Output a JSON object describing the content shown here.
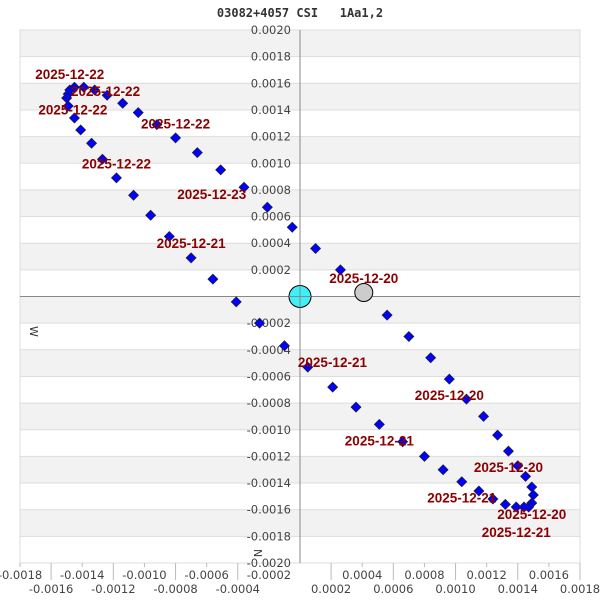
{
  "chart_data": {
    "type": "scatter",
    "title": "03082+4057 CSI   1Aa1,2",
    "xlabel": "W",
    "ylabel": "N",
    "xlim": [
      -0.0018,
      0.0018
    ],
    "ylim": [
      -0.002,
      0.002
    ],
    "x_ticks": [
      "-0.0018",
      "-0.0016",
      "-0.0014",
      "-0.0012",
      "-0.0010",
      "-0.0008",
      "-0.0006",
      "-0.0004",
      "-0.0002",
      "0.0002",
      "0.0004",
      "0.0006",
      "0.0008",
      "0.0010",
      "0.0012",
      "0.0014",
      "0.0016",
      "0.0018"
    ],
    "y_ticks": [
      "0.0020",
      "0.0018",
      "0.0016",
      "0.0014",
      "0.0012",
      "0.0010",
      "0.0008",
      "0.0006",
      "0.0004",
      "0.0002",
      "-0.0002",
      "-0.0004",
      "-0.0006",
      "-0.0008",
      "-0.0010",
      "-0.0012",
      "-0.0014",
      "-0.0016",
      "-0.0018",
      "-0.0020"
    ],
    "grid": true,
    "colors": {
      "points": "#0000ff",
      "primary": "#40f0f8",
      "reference": "#cccccc",
      "labels": "#8b0000",
      "band": "#f2f2f2"
    },
    "primary": {
      "x": 0,
      "y": 0
    },
    "reference": {
      "x": 0.00041,
      "y": 3e-05
    },
    "points": [
      [
        -0.00124,
        0.00151
      ],
      [
        -0.00114,
        0.00145
      ],
      [
        -0.00104,
        0.00138
      ],
      [
        -0.00092,
        0.00129
      ],
      [
        -0.0008,
        0.00119
      ],
      [
        -0.00066,
        0.00108
      ],
      [
        -0.00051,
        0.00095
      ],
      [
        -0.00036,
        0.00082
      ],
      [
        -0.00021,
        0.00067
      ],
      [
        -5e-05,
        0.00052
      ],
      [
        0.0001,
        0.00036
      ],
      [
        0.00026,
        0.0002
      ],
      [
        0.00056,
        -0.00014
      ],
      [
        0.0007,
        -0.0003
      ],
      [
        0.00084,
        -0.00046
      ],
      [
        0.00096,
        -0.00062
      ],
      [
        0.00107,
        -0.00077
      ],
      [
        0.00118,
        -0.0009
      ],
      [
        0.00127,
        -0.00104
      ],
      [
        0.00134,
        -0.00116
      ],
      [
        0.0014,
        -0.00127
      ],
      [
        0.00145,
        -0.00135
      ],
      [
        0.00149,
        -0.00143
      ],
      [
        0.0015,
        -0.00149
      ],
      [
        0.00149,
        -0.00155
      ],
      [
        0.00147,
        -0.00158
      ],
      [
        0.00144,
        -0.00158
      ],
      [
        0.00139,
        -0.00158
      ],
      [
        0.00132,
        -0.00156
      ],
      [
        0.00124,
        -0.00152
      ],
      [
        0.00115,
        -0.00146
      ],
      [
        0.00104,
        -0.00139
      ],
      [
        0.00092,
        -0.0013
      ],
      [
        0.0008,
        -0.0012
      ],
      [
        0.00066,
        -0.00109
      ],
      [
        0.00051,
        -0.00096
      ],
      [
        0.00036,
        -0.00083
      ],
      [
        0.00021,
        -0.00068
      ],
      [
        5e-05,
        -0.00053
      ],
      [
        -0.0001,
        -0.00037
      ],
      [
        -0.00026,
        -0.0002
      ],
      [
        -0.00041,
        -4e-05
      ],
      [
        -0.00056,
        0.00013
      ],
      [
        -0.0007,
        0.00029
      ],
      [
        -0.00084,
        0.00045
      ],
      [
        -0.00096,
        0.00061
      ],
      [
        -0.00107,
        0.00076
      ],
      [
        -0.00118,
        0.00089
      ],
      [
        -0.00127,
        0.00103
      ],
      [
        -0.00134,
        0.00115
      ],
      [
        -0.00141,
        0.00125
      ],
      [
        -0.00145,
        0.00134
      ],
      [
        -0.00149,
        0.00143
      ],
      [
        -0.0015,
        0.00149
      ],
      [
        -0.00149,
        0.00152
      ],
      [
        -0.00148,
        0.00155
      ],
      [
        -0.00145,
        0.00157
      ],
      [
        -0.00139,
        0.00157
      ],
      [
        -0.00132,
        0.00155
      ]
    ],
    "annotations": [
      {
        "text": "2025-12-22",
        "x": -0.00148,
        "y": 0.00167
      },
      {
        "text": "2025-12-22",
        "x": -0.00125,
        "y": 0.00161
      },
      {
        "text": "2025-12-22",
        "x": -0.00146,
        "y": 0.00145
      },
      {
        "text": "2025-12-22",
        "x": -0.0008,
        "y": 0.0013
      },
      {
        "text": "2025-12-22",
        "x": -0.00118,
        "y": 0.001
      },
      {
        "text": "2025-12-23",
        "x": -0.00022,
        "y": 0.00077
      },
      {
        "text": "2025-12-21",
        "x": -0.0007,
        "y": 0.0004
      },
      {
        "text": "2025-12-20",
        "x": 0.00041,
        "y": 0.00014
      },
      {
        "text": "2025-12-21",
        "x": -0.0001,
        "y": -0.00049
      },
      {
        "text": "2025-12-20",
        "x": 0.00096,
        "y": -0.00074
      },
      {
        "text": "2025-12-21",
        "x": 0.00051,
        "y": -0.00108
      },
      {
        "text": "2025-12-20",
        "x": 0.00134,
        "y": -0.00128
      },
      {
        "text": "2025-12-21",
        "x": 0.00104,
        "y": -0.00151
      },
      {
        "text": "2025-12-20",
        "x": 0.00149,
        "y": -0.00161
      },
      {
        "text": "2025-12-21",
        "x": 0.00139,
        "y": -0.0017
      }
    ]
  }
}
